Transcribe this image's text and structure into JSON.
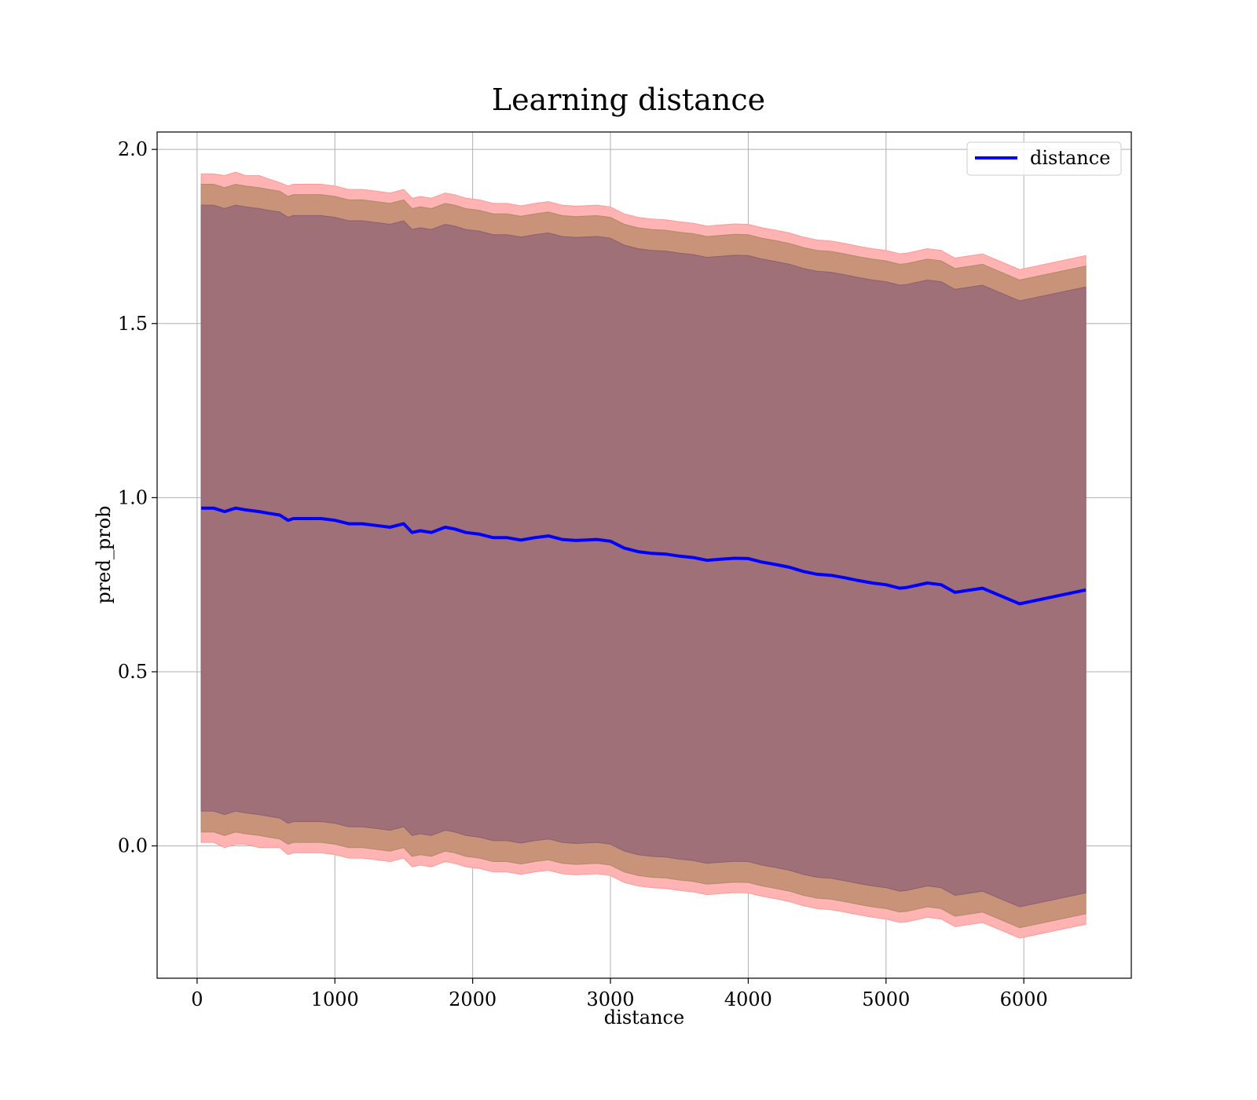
{
  "chart_data": {
    "type": "line",
    "title": "Learning distance",
    "xlabel": "distance",
    "ylabel": "pred_prob",
    "xlim": [
      -290,
      6780
    ],
    "ylim": [
      -0.38,
      2.05
    ],
    "xticks": [
      0,
      1000,
      2000,
      3000,
      4000,
      5000,
      6000
    ],
    "xtick_labels": [
      "0",
      "1000",
      "2000",
      "3000",
      "4000",
      "5000",
      "6000"
    ],
    "yticks": [
      0.0,
      0.5,
      1.0,
      1.5,
      2.0
    ],
    "ytick_labels": [
      "0.0",
      "0.5",
      "1.0",
      "1.5",
      "2.0"
    ],
    "grid": true,
    "legend": {
      "position": "top-right",
      "entries": [
        "distance"
      ]
    },
    "colors": {
      "line": "#0000ff",
      "band_outer": "#ffb3b3",
      "band_middle": "#c89378",
      "band_inner": "#a07079",
      "grid": "#b0b0b0",
      "axes": "#000000"
    },
    "series": [
      {
        "name": "distance",
        "x": [
          30,
          120,
          200,
          280,
          350,
          450,
          520,
          600,
          660,
          700,
          800,
          900,
          1000,
          1100,
          1200,
          1300,
          1400,
          1500,
          1560,
          1620,
          1700,
          1800,
          1870,
          1950,
          2050,
          2150,
          2250,
          2350,
          2450,
          2550,
          2650,
          2750,
          2900,
          3000,
          3100,
          3200,
          3300,
          3400,
          3500,
          3600,
          3700,
          3800,
          3900,
          4000,
          4100,
          4200,
          4300,
          4400,
          4500,
          4600,
          4700,
          4800,
          4900,
          5000,
          5100,
          5150,
          5300,
          5400,
          5500,
          5700,
          5970,
          6450
        ],
        "values": [
          0.97,
          0.97,
          0.96,
          0.97,
          0.965,
          0.96,
          0.955,
          0.95,
          0.935,
          0.94,
          0.94,
          0.94,
          0.935,
          0.925,
          0.925,
          0.92,
          0.915,
          0.925,
          0.9,
          0.905,
          0.9,
          0.915,
          0.91,
          0.9,
          0.895,
          0.885,
          0.885,
          0.878,
          0.885,
          0.89,
          0.88,
          0.877,
          0.88,
          0.875,
          0.855,
          0.845,
          0.84,
          0.838,
          0.832,
          0.828,
          0.82,
          0.823,
          0.826,
          0.825,
          0.815,
          0.808,
          0.8,
          0.788,
          0.78,
          0.777,
          0.77,
          0.762,
          0.755,
          0.75,
          0.74,
          0.742,
          0.755,
          0.75,
          0.728,
          0.74,
          0.695,
          0.735
        ],
        "band_outer_upper": [
          1.93,
          1.93,
          1.925,
          1.935,
          1.925,
          1.925,
          1.915,
          1.905,
          1.895,
          1.9,
          1.9,
          1.9,
          1.895,
          1.885,
          1.885,
          1.88,
          1.875,
          1.885,
          1.86,
          1.865,
          1.86,
          1.875,
          1.87,
          1.86,
          1.855,
          1.845,
          1.845,
          1.838,
          1.845,
          1.85,
          1.84,
          1.837,
          1.84,
          1.835,
          1.815,
          1.805,
          1.8,
          1.798,
          1.792,
          1.788,
          1.78,
          1.783,
          1.786,
          1.785,
          1.775,
          1.768,
          1.76,
          1.748,
          1.74,
          1.737,
          1.73,
          1.722,
          1.715,
          1.71,
          1.7,
          1.702,
          1.715,
          1.71,
          1.688,
          1.7,
          1.655,
          1.695
        ],
        "band_outer_lower": [
          0.01,
          0.01,
          -0.005,
          0.005,
          0.005,
          -0.005,
          -0.005,
          -0.005,
          -0.025,
          -0.02,
          -0.02,
          -0.02,
          -0.025,
          -0.035,
          -0.035,
          -0.04,
          -0.045,
          -0.035,
          -0.06,
          -0.055,
          -0.06,
          -0.045,
          -0.05,
          -0.06,
          -0.065,
          -0.075,
          -0.075,
          -0.082,
          -0.075,
          -0.07,
          -0.08,
          -0.083,
          -0.08,
          -0.085,
          -0.105,
          -0.115,
          -0.12,
          -0.122,
          -0.128,
          -0.132,
          -0.14,
          -0.137,
          -0.134,
          -0.135,
          -0.145,
          -0.152,
          -0.16,
          -0.172,
          -0.18,
          -0.183,
          -0.19,
          -0.198,
          -0.205,
          -0.21,
          -0.22,
          -0.218,
          -0.205,
          -0.21,
          -0.232,
          -0.22,
          -0.265,
          -0.225
        ],
        "band_middle_upper": [
          1.9,
          1.9,
          1.89,
          1.9,
          1.895,
          1.89,
          1.885,
          1.88,
          1.865,
          1.87,
          1.87,
          1.87,
          1.865,
          1.855,
          1.855,
          1.85,
          1.845,
          1.855,
          1.83,
          1.835,
          1.83,
          1.845,
          1.84,
          1.83,
          1.825,
          1.815,
          1.815,
          1.808,
          1.815,
          1.82,
          1.81,
          1.807,
          1.81,
          1.805,
          1.785,
          1.775,
          1.77,
          1.768,
          1.762,
          1.758,
          1.75,
          1.753,
          1.756,
          1.755,
          1.745,
          1.738,
          1.73,
          1.718,
          1.71,
          1.707,
          1.7,
          1.692,
          1.685,
          1.68,
          1.67,
          1.672,
          1.685,
          1.68,
          1.658,
          1.67,
          1.625,
          1.665
        ],
        "band_middle_lower": [
          0.04,
          0.04,
          0.03,
          0.04,
          0.035,
          0.03,
          0.025,
          0.02,
          0.005,
          0.01,
          0.01,
          0.01,
          0.005,
          -0.005,
          -0.005,
          -0.01,
          -0.015,
          -0.005,
          -0.03,
          -0.025,
          -0.03,
          -0.015,
          -0.02,
          -0.03,
          -0.035,
          -0.045,
          -0.045,
          -0.052,
          -0.045,
          -0.04,
          -0.05,
          -0.053,
          -0.05,
          -0.055,
          -0.075,
          -0.085,
          -0.09,
          -0.092,
          -0.098,
          -0.102,
          -0.11,
          -0.107,
          -0.104,
          -0.105,
          -0.115,
          -0.122,
          -0.13,
          -0.142,
          -0.15,
          -0.153,
          -0.16,
          -0.168,
          -0.175,
          -0.18,
          -0.19,
          -0.188,
          -0.175,
          -0.18,
          -0.202,
          -0.19,
          -0.235,
          -0.195
        ],
        "band_inner_upper": [
          1.84,
          1.84,
          1.83,
          1.84,
          1.835,
          1.83,
          1.825,
          1.82,
          1.805,
          1.81,
          1.81,
          1.81,
          1.805,
          1.795,
          1.795,
          1.79,
          1.785,
          1.795,
          1.77,
          1.775,
          1.77,
          1.785,
          1.78,
          1.77,
          1.765,
          1.755,
          1.755,
          1.748,
          1.755,
          1.76,
          1.75,
          1.747,
          1.75,
          1.745,
          1.725,
          1.715,
          1.71,
          1.708,
          1.702,
          1.698,
          1.69,
          1.693,
          1.696,
          1.695,
          1.685,
          1.678,
          1.67,
          1.658,
          1.65,
          1.647,
          1.64,
          1.632,
          1.625,
          1.62,
          1.61,
          1.612,
          1.625,
          1.62,
          1.598,
          1.61,
          1.565,
          1.605
        ],
        "band_inner_lower": [
          0.1,
          0.1,
          0.09,
          0.1,
          0.095,
          0.09,
          0.085,
          0.08,
          0.065,
          0.07,
          0.07,
          0.07,
          0.065,
          0.055,
          0.055,
          0.05,
          0.045,
          0.055,
          0.03,
          0.035,
          0.03,
          0.045,
          0.04,
          0.03,
          0.025,
          0.015,
          0.015,
          0.008,
          0.015,
          0.02,
          0.01,
          0.007,
          0.01,
          0.005,
          -0.015,
          -0.025,
          -0.03,
          -0.032,
          -0.038,
          -0.042,
          -0.05,
          -0.047,
          -0.044,
          -0.045,
          -0.055,
          -0.062,
          -0.07,
          -0.082,
          -0.09,
          -0.093,
          -0.1,
          -0.108,
          -0.115,
          -0.12,
          -0.13,
          -0.128,
          -0.115,
          -0.12,
          -0.142,
          -0.13,
          -0.175,
          -0.135
        ]
      }
    ]
  }
}
